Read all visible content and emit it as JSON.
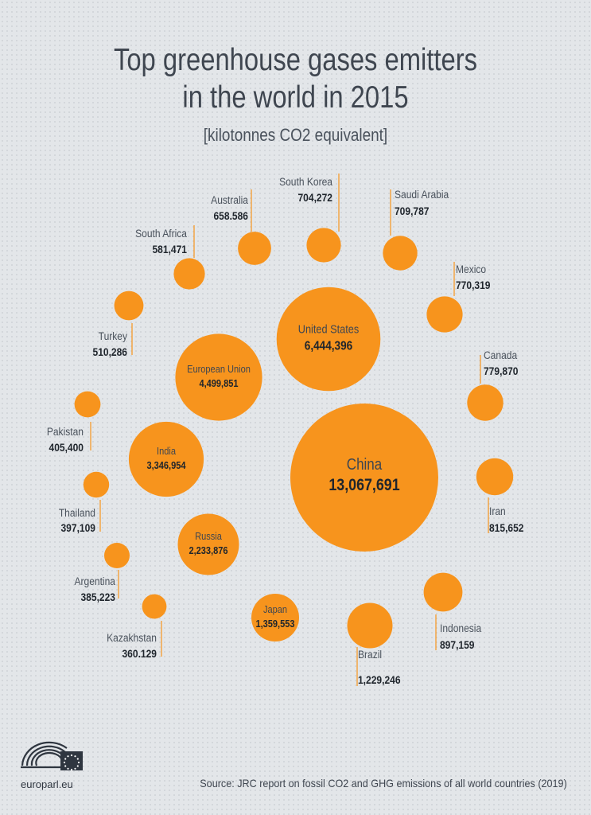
{
  "chart_data": {
    "type": "bubble",
    "title": "Top greenhouse gases emitters\nin the world in 2015",
    "subtitle": "[kilotonnes CO2 equivalent]",
    "unit": "kilotonnes CO2 equivalent",
    "accent_color": "#f7941d",
    "line_color": "#f7941d",
    "items": [
      {
        "name": "China",
        "value_label": "13,067,691",
        "value": 13067691,
        "label": "inside"
      },
      {
        "name": "United States",
        "value_label": "6,444,396",
        "value": 6444396,
        "label": "inside"
      },
      {
        "name": "European Union",
        "value_label": "4,499,851",
        "value": 4499851,
        "label": "inside"
      },
      {
        "name": "India",
        "value_label": "3,346,954",
        "value": 3346954,
        "label": "inside"
      },
      {
        "name": "Russia",
        "value_label": "2,233,876",
        "value": 2233876,
        "label": "inside"
      },
      {
        "name": "Japan",
        "value_label": "1,359,553",
        "value": 1359553,
        "label": "inside"
      },
      {
        "name": "Brazil",
        "value_label": "1,229,246",
        "value": 1229246,
        "label": "below"
      },
      {
        "name": "Indonesia",
        "value_label": "897,159",
        "value": 897159,
        "label": "below"
      },
      {
        "name": "Iran",
        "value_label": "815,652",
        "value": 815652,
        "label": "below"
      },
      {
        "name": "Canada",
        "value_label": "779,870",
        "value": 779870,
        "label": "above"
      },
      {
        "name": "Mexico",
        "value_label": "770,319",
        "value": 770319,
        "label": "above"
      },
      {
        "name": "Saudi Arabia",
        "value_label": "709,787",
        "value": 709787,
        "label": "above"
      },
      {
        "name": "South Korea",
        "value_label": "704,272",
        "value": 704272,
        "label": "above"
      },
      {
        "name": "Australia",
        "value_label": "658.586",
        "value": 658586,
        "label": "above"
      },
      {
        "name": "South Africa",
        "value_label": "581,471",
        "value": 581471,
        "label": "above"
      },
      {
        "name": "Turkey",
        "value_label": "510,286",
        "value": 510286,
        "label": "below"
      },
      {
        "name": "Pakistan",
        "value_label": "405,400",
        "value": 405400,
        "label": "below"
      },
      {
        "name": "Thailand",
        "value_label": "397,109",
        "value": 397109,
        "label": "below"
      },
      {
        "name": "Argentina",
        "value_label": "385,223",
        "value": 385223,
        "label": "below"
      },
      {
        "name": "Kazakhstan",
        "value_label": "360.129",
        "value": 360129,
        "label": "below"
      }
    ]
  },
  "footer": {
    "site": "europarl.eu",
    "source": "Source: JRC report on fossil CO2 and GHG emissions of all world countries (2019)"
  },
  "logo": {
    "icon": "european-parliament-logo-icon"
  }
}
